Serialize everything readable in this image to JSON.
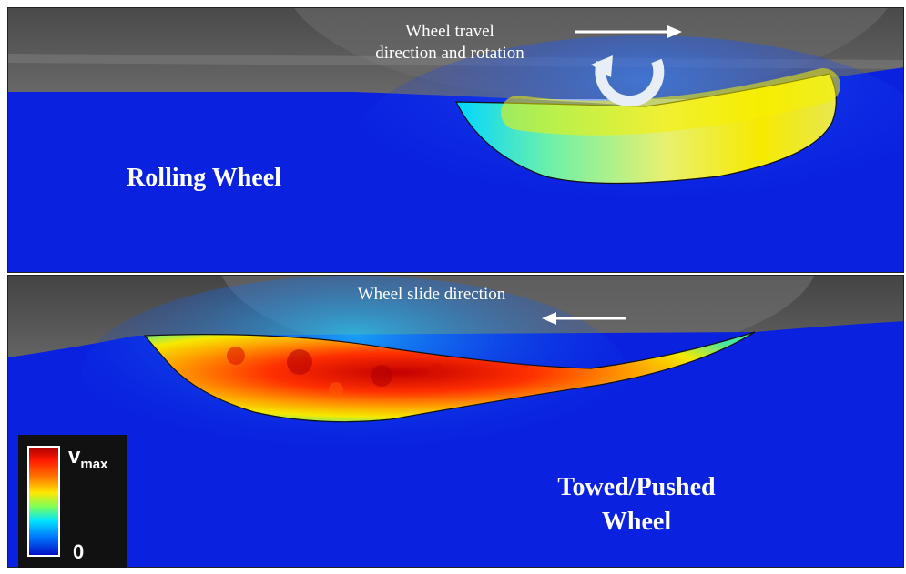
{
  "top_panel": {
    "annotation_line1": "Wheel travel",
    "annotation_line2": "direction and rotation",
    "label": "Rolling Wheel",
    "arrow_icon": "right-arrow-icon",
    "rotation_icon": "clockwise-rotation-icon"
  },
  "bottom_panel": {
    "annotation": "Wheel slide direction",
    "label_line1": "Towed/Pushed",
    "label_line2": "Wheel",
    "arrow_icon": "left-arrow-icon"
  },
  "legend": {
    "max_base": "v",
    "max_sub": "max",
    "min_label": "0"
  },
  "colors": {
    "field_background": "#0a22e0",
    "wheel_gray": "#5c5c5c",
    "hot_red": "#d40000",
    "yellow": "#f5e400",
    "cyan": "#00e0ff"
  }
}
